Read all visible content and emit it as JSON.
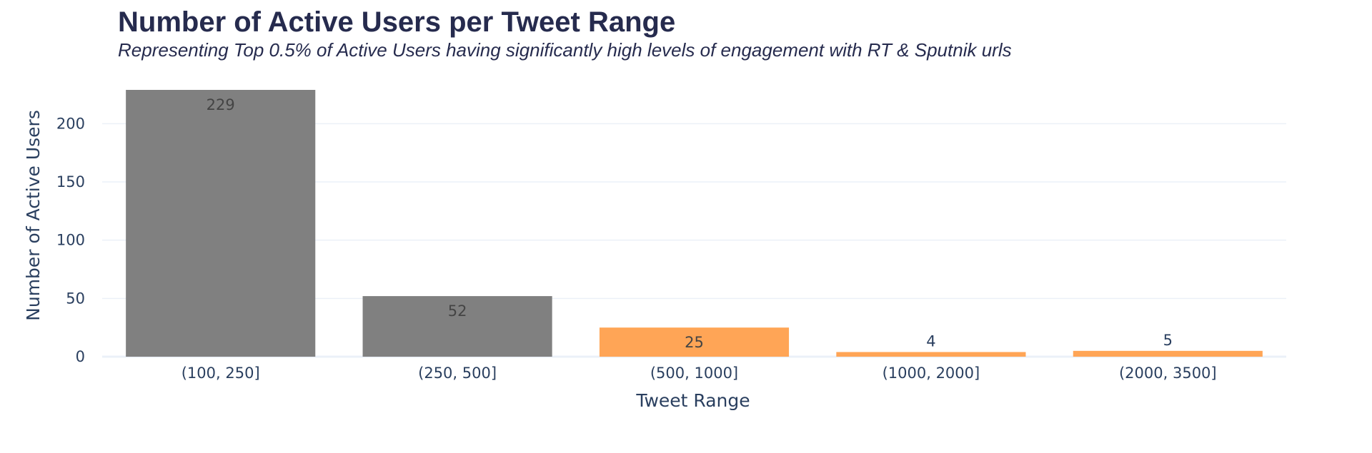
{
  "chart_data": {
    "type": "bar",
    "title": "Number of Active Users per Tweet Range",
    "subtitle": "Representing Top 0.5% of Active Users having significantly high levels of engagement with RT & Sputnik urls",
    "xlabel": "Tweet Range",
    "ylabel": "Number of Active Users",
    "categories": [
      "(100, 250]",
      "(250, 500]",
      "(500, 1000]",
      "(1000, 2000]",
      "(2000, 3500]"
    ],
    "values": [
      229,
      52,
      25,
      4,
      5
    ],
    "data_labels": [
      "229",
      "52",
      "25",
      "4",
      "5"
    ],
    "bar_colors": [
      "#808080",
      "#808080",
      "#ffa556",
      "#ffa556",
      "#ffa556"
    ],
    "ylim": [
      0,
      229
    ],
    "yticks": [
      0,
      50,
      100,
      150,
      200
    ],
    "ytick_labels": [
      "0",
      "50",
      "100",
      "150",
      "200"
    ],
    "grid": true,
    "legend": "none"
  }
}
